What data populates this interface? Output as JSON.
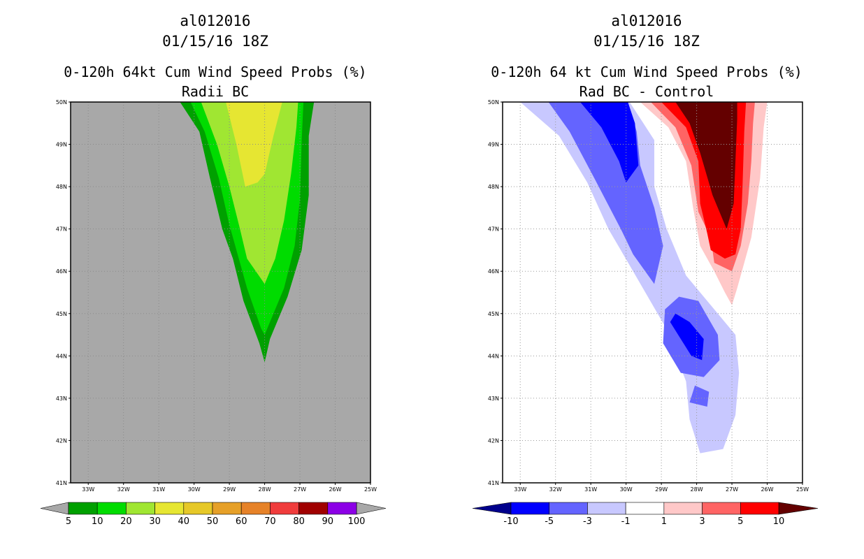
{
  "chart_data": [
    {
      "type": "heatmap",
      "title_lines": [
        "al012016",
        "01/15/16 18Z",
        "0-120h 64kt Cum Wind Speed Probs (%)",
        "Radii BC"
      ],
      "xlabel": "",
      "ylabel": "",
      "x_range": [
        -33.5,
        -25
      ],
      "y_range": [
        41,
        50
      ],
      "x_ticks": [
        "33W",
        "32W",
        "31W",
        "30W",
        "29W",
        "28W",
        "27W",
        "26W",
        "25W"
      ],
      "y_ticks": [
        "41N",
        "42N",
        "43N",
        "44N",
        "45N",
        "46N",
        "47N",
        "48N",
        "49N",
        "50N"
      ],
      "grid": true,
      "background_color": "#a8a8a8",
      "colorbar": {
        "labels": [
          "5",
          "10",
          "20",
          "30",
          "40",
          "50",
          "60",
          "70",
          "80",
          "90",
          "100"
        ],
        "colors": [
          "#00a000",
          "#00dc00",
          "#a0e632",
          "#e6e632",
          "#e6c828",
          "#e6a028",
          "#e68228",
          "#f03c3c",
          "#a00000",
          "#8c00e6"
        ],
        "end_color": "#a8a8a8"
      },
      "contours": [
        {
          "level": 5,
          "color": "#00a000",
          "points": [
            [
              -30.4,
              50
            ],
            [
              -29.85,
              49.3
            ],
            [
              -29.55,
              48.2
            ],
            [
              -29.2,
              47.0
            ],
            [
              -28.9,
              46.3
            ],
            [
              -28.6,
              45.3
            ],
            [
              -28.15,
              44.3
            ],
            [
              -28.0,
              43.85
            ],
            [
              -27.85,
              44.4
            ],
            [
              -27.35,
              45.4
            ],
            [
              -26.95,
              46.5
            ],
            [
              -26.75,
              47.8
            ],
            [
              -26.75,
              49.2
            ],
            [
              -26.6,
              50
            ]
          ]
        },
        {
          "level": 10,
          "color": "#00dc00",
          "points": [
            [
              -30.1,
              50
            ],
            [
              -29.7,
              49.3
            ],
            [
              -29.3,
              48.2
            ],
            [
              -29.0,
              47.1
            ],
            [
              -28.7,
              46.2
            ],
            [
              -28.5,
              45.6
            ],
            [
              -28.1,
              44.65
            ],
            [
              -28.0,
              44.5
            ],
            [
              -27.8,
              44.9
            ],
            [
              -27.45,
              45.6
            ],
            [
              -27.15,
              46.6
            ],
            [
              -27.0,
              47.7
            ],
            [
              -26.95,
              49.1
            ],
            [
              -26.9,
              50
            ]
          ]
        },
        {
          "level": 20,
          "color": "#a0e632",
          "points": [
            [
              -29.8,
              50
            ],
            [
              -29.35,
              49.0
            ],
            [
              -29.0,
              48.0
            ],
            [
              -28.7,
              47.0
            ],
            [
              -28.5,
              46.3
            ],
            [
              -28.0,
              45.7
            ],
            [
              -27.7,
              46.3
            ],
            [
              -27.45,
              47.2
            ],
            [
              -27.25,
              48.3
            ],
            [
              -27.1,
              49.4
            ],
            [
              -27.05,
              50
            ]
          ]
        },
        {
          "level": 30,
          "color": "#e6e632",
          "points": [
            [
              -29.1,
              50
            ],
            [
              -28.8,
              49.0
            ],
            [
              -28.55,
              48.0
            ],
            [
              -28.2,
              48.1
            ],
            [
              -28.0,
              48.3
            ],
            [
              -27.75,
              49.2
            ],
            [
              -27.5,
              50
            ]
          ]
        }
      ]
    },
    {
      "type": "heatmap",
      "title_lines": [
        "al012016",
        "01/15/16 18Z",
        "0-120h 64 kt Cum Wind Speed Probs (%)",
        "Rad BC - Control"
      ],
      "xlabel": "",
      "ylabel": "",
      "x_range": [
        -33.5,
        -25
      ],
      "y_range": [
        41,
        50
      ],
      "x_ticks": [
        "33W",
        "32W",
        "31W",
        "30W",
        "29W",
        "28W",
        "27W",
        "26W",
        "25W"
      ],
      "y_ticks": [
        "41N",
        "42N",
        "43N",
        "44N",
        "45N",
        "46N",
        "47N",
        "48N",
        "49N",
        "50N"
      ],
      "grid": true,
      "background_color": "#ffffff",
      "colorbar": {
        "labels": [
          "-10",
          "-5",
          "-3",
          "-1",
          "1",
          "3",
          "5",
          "10"
        ],
        "colors": [
          "#0000ff",
          "#6464ff",
          "#c8c8ff",
          "#ffffff",
          "#ffc8c8",
          "#ff6464",
          "#ff0000"
        ],
        "end_colors": [
          "#00008c",
          "#640000"
        ]
      },
      "contours": [
        {
          "level": -1,
          "color": "#c8c8ff",
          "points": [
            [
              -33.0,
              50
            ],
            [
              -31.9,
              49.2
            ],
            [
              -31.1,
              48.1
            ],
            [
              -30.5,
              47.0
            ],
            [
              -29.8,
              46.0
            ],
            [
              -28.9,
              44.7
            ],
            [
              -28.3,
              43.4
            ],
            [
              -28.2,
              42.5
            ],
            [
              -27.9,
              41.7
            ],
            [
              -27.25,
              41.8
            ],
            [
              -26.9,
              42.6
            ],
            [
              -26.8,
              43.6
            ],
            [
              -26.9,
              44.5
            ],
            [
              -27.5,
              45.1
            ],
            [
              -28.3,
              45.9
            ],
            [
              -28.85,
              47.0
            ],
            [
              -29.2,
              48.0
            ],
            [
              -29.2,
              49.1
            ],
            [
              -29.9,
              50
            ]
          ]
        },
        {
          "level": -3,
          "color": "#6464ff",
          "points": [
            [
              -32.2,
              50
            ],
            [
              -31.6,
              49.3
            ],
            [
              -30.9,
              48.2
            ],
            [
              -30.15,
              47.0
            ],
            [
              -29.8,
              46.4
            ],
            [
              -29.2,
              45.7
            ],
            [
              -28.95,
              46.6
            ],
            [
              -29.2,
              47.5
            ],
            [
              -29.6,
              48.5
            ],
            [
              -29.7,
              49.3
            ],
            [
              -29.95,
              50
            ]
          ]
        },
        {
          "level": -3,
          "color": "#6464ff",
          "points": [
            [
              -28.9,
              45.1
            ],
            [
              -28.5,
              45.4
            ],
            [
              -27.95,
              45.3
            ],
            [
              -27.4,
              44.5
            ],
            [
              -27.35,
              43.9
            ],
            [
              -27.8,
              43.5
            ],
            [
              -28.45,
              43.6
            ],
            [
              -28.95,
              44.3
            ]
          ]
        },
        {
          "level": -3,
          "color": "#6464ff",
          "points": [
            [
              -28.2,
              42.9
            ],
            [
              -27.7,
              42.8
            ],
            [
              -27.65,
              43.15
            ],
            [
              -28.05,
              43.3
            ]
          ]
        },
        {
          "level": -5,
          "color": "#0000ff",
          "points": [
            [
              -31.3,
              50
            ],
            [
              -30.7,
              49.4
            ],
            [
              -30.2,
              48.6
            ],
            [
              -30.0,
              48.1
            ],
            [
              -29.65,
              48.5
            ],
            [
              -29.75,
              49.5
            ],
            [
              -29.95,
              50
            ]
          ]
        },
        {
          "level": -5,
          "color": "#0000ff",
          "points": [
            [
              -28.6,
              45.0
            ],
            [
              -28.2,
              44.8
            ],
            [
              -27.8,
              44.4
            ],
            [
              -27.85,
              43.9
            ],
            [
              -28.15,
              44.0
            ],
            [
              -28.75,
              44.8
            ]
          ]
        },
        {
          "level": 1,
          "color": "#ffc8c8",
          "points": [
            [
              -29.6,
              50
            ],
            [
              -28.8,
              49.4
            ],
            [
              -28.3,
              48.6
            ],
            [
              -28.1,
              47.5
            ],
            [
              -27.9,
              46.6
            ],
            [
              -27.5,
              46.0
            ],
            [
              -27.2,
              45.5
            ],
            [
              -27.0,
              45.2
            ],
            [
              -26.85,
              45.6
            ],
            [
              -26.45,
              46.8
            ],
            [
              -26.2,
              48.2
            ],
            [
              -26.1,
              49.4
            ],
            [
              -26.0,
              50
            ]
          ]
        },
        {
          "level": 3,
          "color": "#ff6464",
          "points": [
            [
              -29.3,
              50
            ],
            [
              -28.6,
              49.4
            ],
            [
              -28.15,
              48.5
            ],
            [
              -27.95,
              47.4
            ],
            [
              -27.6,
              46.8
            ],
            [
              -27.5,
              46.2
            ],
            [
              -27.0,
              46.0
            ],
            [
              -26.75,
              46.6
            ],
            [
              -26.55,
              47.6
            ],
            [
              -26.45,
              48.6
            ],
            [
              -26.4,
              49.5
            ],
            [
              -26.35,
              50
            ]
          ]
        },
        {
          "level": 5,
          "color": "#ff0000",
          "points": [
            [
              -29.0,
              50
            ],
            [
              -28.3,
              49.4
            ],
            [
              -27.95,
              48.6
            ],
            [
              -27.9,
              47.6
            ],
            [
              -27.7,
              46.9
            ],
            [
              -27.6,
              46.5
            ],
            [
              -27.2,
              46.3
            ],
            [
              -26.9,
              46.4
            ],
            [
              -26.75,
              47.0
            ],
            [
              -26.7,
              48.0
            ],
            [
              -26.65,
              49.3
            ],
            [
              -26.6,
              50
            ]
          ]
        },
        {
          "level": 10,
          "color": "#640000",
          "points": [
            [
              -28.6,
              50
            ],
            [
              -28.2,
              49.5
            ],
            [
              -27.9,
              48.8
            ],
            [
              -27.55,
              47.8
            ],
            [
              -27.15,
              47.0
            ],
            [
              -26.95,
              47.6
            ],
            [
              -26.9,
              48.6
            ],
            [
              -26.85,
              49.6
            ],
            [
              -26.85,
              50
            ]
          ]
        }
      ]
    }
  ]
}
